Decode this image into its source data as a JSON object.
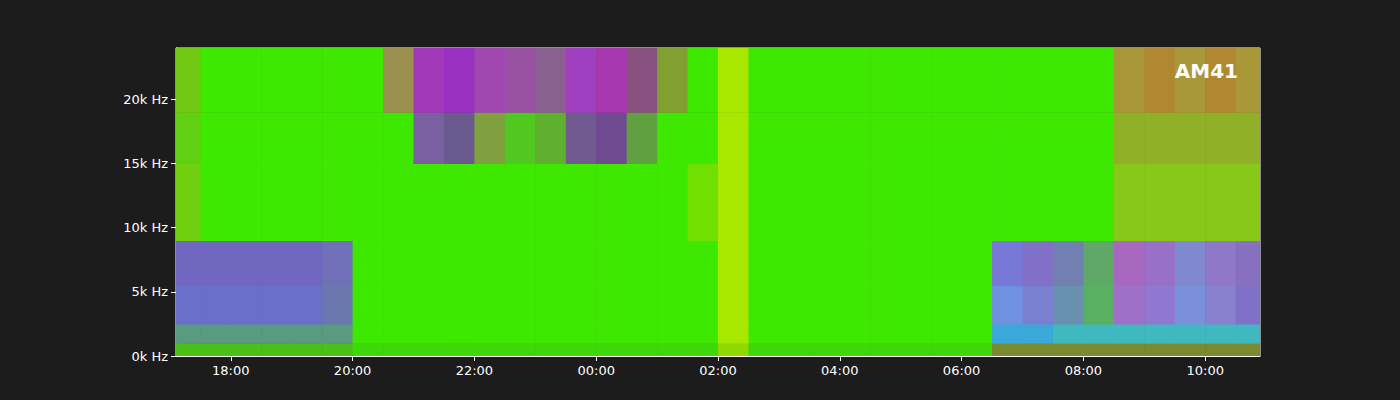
{
  "chart_data": {
    "type": "heatmap",
    "annotation": "AM41",
    "grid": false,
    "xlim": [
      17.1,
      34.9
    ],
    "ylim": [
      0,
      24000
    ],
    "xticks": [
      {
        "value": 18,
        "label": "18:00"
      },
      {
        "value": 20,
        "label": "20:00"
      },
      {
        "value": 22,
        "label": "22:00"
      },
      {
        "value": 24,
        "label": "00:00"
      },
      {
        "value": 26,
        "label": "02:00"
      },
      {
        "value": 28,
        "label": "04:00"
      },
      {
        "value": 30,
        "label": "06:00"
      },
      {
        "value": 32,
        "label": "08:00"
      },
      {
        "value": 34,
        "label": "10:00"
      }
    ],
    "yticks": [
      {
        "value": 0,
        "label": "0k Hz"
      },
      {
        "value": 5000,
        "label": "5k Hz"
      },
      {
        "value": 10000,
        "label": "10k Hz"
      },
      {
        "value": 15000,
        "label": "15k Hz"
      },
      {
        "value": 20000,
        "label": "20k Hz"
      }
    ],
    "x_bins": [
      17.1,
      17.5,
      18.0,
      18.5,
      19.0,
      19.5,
      20.0,
      20.5,
      21.0,
      21.5,
      22.0,
      22.5,
      23.0,
      23.5,
      24.0,
      24.5,
      25.0,
      25.5,
      26.0,
      26.5,
      27.0,
      27.5,
      28.0,
      28.5,
      29.0,
      29.5,
      30.0,
      30.5,
      31.0,
      31.5,
      32.0,
      32.5,
      33.0,
      33.5,
      34.0,
      34.5,
      34.9
    ],
    "y_bins": [
      0,
      1000,
      2500,
      5500,
      9000,
      15000,
      19000,
      24000
    ],
    "cell_colors": [
      [
        "#48c018",
        "#48c018",
        "#48c018",
        "#48c018",
        "#48c018",
        "#48c018",
        "#3ed808",
        "#3ed808",
        "#3ed808",
        "#3ed808",
        "#3ed808",
        "#3ed808",
        "#3ed808",
        "#3ed808",
        "#3ed808",
        "#3ed808",
        "#3ed808",
        "#3ed808",
        "#90d800",
        "#3ed808",
        "#3ed808",
        "#3ed808",
        "#3ed808",
        "#3ed808",
        "#3ed808",
        "#3ed808",
        "#3ed808",
        "#7a8a30",
        "#7a8a30",
        "#7a8a30",
        "#7a8a30",
        "#7a8a30",
        "#7a8a30",
        "#7a8a30",
        "#7a8a30",
        "#7a8a30"
      ],
      [
        "#5a9a80",
        "#5a9a80",
        "#5a9a80",
        "#5a9a80",
        "#5a9a80",
        "#5a9a80",
        "#3ee800",
        "#3ee800",
        "#3ee800",
        "#3ee800",
        "#3ee800",
        "#3ee800",
        "#3ee800",
        "#3ee800",
        "#3ee800",
        "#3ee800",
        "#3ee800",
        "#3ee800",
        "#a8e800",
        "#3ee800",
        "#3ee800",
        "#3ee800",
        "#3ee800",
        "#3ee800",
        "#3ee800",
        "#3ee800",
        "#3ee800",
        "#3aa8d8",
        "#3aa8d8",
        "#40b8c0",
        "#40b8c0",
        "#40b8c0",
        "#40b8c0",
        "#40b8c0",
        "#40b8c0",
        "#40b8c0"
      ],
      [
        "#6a70c8",
        "#6a70c8",
        "#6a70c8",
        "#6a70c8",
        "#6a70c8",
        "#6a78b0",
        "#3ee800",
        "#3ee800",
        "#3ee800",
        "#3ee800",
        "#3ee800",
        "#3ee800",
        "#3ee800",
        "#3ee800",
        "#3ee800",
        "#3ee800",
        "#3ee800",
        "#3ee800",
        "#a8e800",
        "#3ee800",
        "#3ee800",
        "#3ee800",
        "#3ee800",
        "#3ee800",
        "#3ee800",
        "#3ee800",
        "#3ee800",
        "#7090e0",
        "#7a80d0",
        "#6a90b0",
        "#58b060",
        "#a070c8",
        "#9078d0",
        "#7a90d8",
        "#8a80d0",
        "#8070c8"
      ],
      [
        "#7068c0",
        "#7068c0",
        "#7068c0",
        "#7068c0",
        "#7068c0",
        "#7070b8",
        "#3ee800",
        "#3ee800",
        "#3ee800",
        "#3ee800",
        "#3ee800",
        "#3ee800",
        "#3ee800",
        "#3ee800",
        "#3ee800",
        "#3ee800",
        "#3ee800",
        "#3ee800",
        "#a8e800",
        "#3ee800",
        "#3ee800",
        "#3ee800",
        "#3ee800",
        "#3ee800",
        "#3ee800",
        "#3ee800",
        "#3ee800",
        "#7878d8",
        "#8070c8",
        "#7080b0",
        "#60a868",
        "#a868c0",
        "#9870c8",
        "#8088d0",
        "#9078c8",
        "#8870c0"
      ],
      [
        "#70d010",
        "#3ee800",
        "#3ee800",
        "#3ee800",
        "#3ee800",
        "#3ee800",
        "#3ee800",
        "#3ee800",
        "#3ee800",
        "#3ee800",
        "#3ee800",
        "#3ee800",
        "#3ee800",
        "#3ee800",
        "#3ee800",
        "#3ee800",
        "#3ee800",
        "#70e000",
        "#a8e800",
        "#3ee800",
        "#3ee800",
        "#3ee800",
        "#3ee800",
        "#3ee800",
        "#3ee800",
        "#3ee800",
        "#3ee800",
        "#3ee800",
        "#3ee800",
        "#3ee800",
        "#3ee800",
        "#88c818",
        "#88c818",
        "#88c818",
        "#88c818",
        "#88c818"
      ],
      [
        "#60d010",
        "#3ee800",
        "#3ee800",
        "#3ee800",
        "#3ee800",
        "#3ee800",
        "#3ee800",
        "#3ee800",
        "#7a60a0",
        "#6a5a90",
        "#80a040",
        "#50c820",
        "#60b030",
        "#705a90",
        "#704a90",
        "#60a040",
        "#3ee800",
        "#3ee800",
        "#a8e800",
        "#3ee800",
        "#3ee800",
        "#3ee800",
        "#3ee800",
        "#3ee800",
        "#3ee800",
        "#3ee800",
        "#3ee800",
        "#3ee800",
        "#3ee800",
        "#3ee800",
        "#3ee800",
        "#90b028",
        "#90b028",
        "#90b028",
        "#90b028",
        "#90b028"
      ],
      [
        "#70c810",
        "#3ee800",
        "#3ee800",
        "#3ee800",
        "#3ee800",
        "#3ee800",
        "#3ee800",
        "#9a9050",
        "#a038b8",
        "#9830c0",
        "#a048b0",
        "#9a50a0",
        "#8a6090",
        "#a040c0",
        "#a838b0",
        "#8a5080",
        "#80a030",
        "#3ee800",
        "#a8e800",
        "#3ee800",
        "#3ee800",
        "#3ee800",
        "#3ee800",
        "#3ee800",
        "#3ee800",
        "#3ee800",
        "#3ee800",
        "#3ee800",
        "#3ee800",
        "#3ee800",
        "#3ee800",
        "#a89838",
        "#b08830",
        "#a89838",
        "#b08830",
        "#a89838"
      ]
    ]
  }
}
